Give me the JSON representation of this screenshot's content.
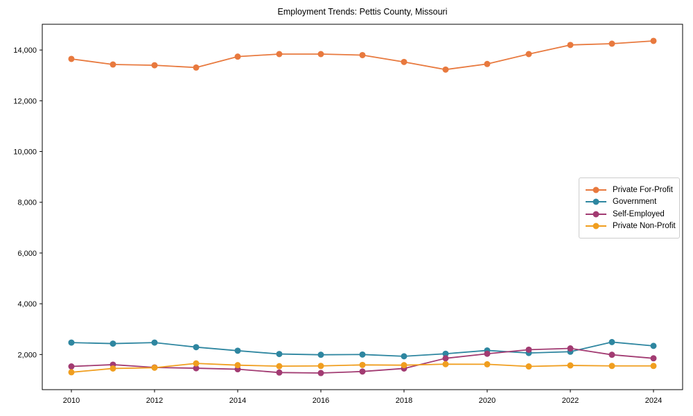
{
  "chart_data": {
    "type": "line",
    "title": "Employment Trends: Pettis County, Missouri",
    "xlabel": "",
    "ylabel": "",
    "x": [
      2010,
      2011,
      2012,
      2013,
      2014,
      2015,
      2016,
      2017,
      2018,
      2019,
      2020,
      2021,
      2022,
      2023,
      2024
    ],
    "series": [
      {
        "name": "Private For-Profit",
        "color": "#e8793e",
        "values": [
          13650,
          13430,
          13400,
          13310,
          13740,
          13840,
          13840,
          13800,
          13530,
          13230,
          13450,
          13840,
          14200,
          14250,
          14360
        ]
      },
      {
        "name": "Government",
        "color": "#2e86a0",
        "values": [
          2470,
          2430,
          2470,
          2290,
          2150,
          2020,
          1990,
          2000,
          1930,
          2030,
          2160,
          2060,
          2110,
          2490,
          2340
        ]
      },
      {
        "name": "Self-Employed",
        "color": "#a23b72",
        "values": [
          1530,
          1600,
          1490,
          1460,
          1420,
          1290,
          1270,
          1330,
          1450,
          1850,
          2030,
          2190,
          2240,
          1990,
          1850
        ]
      },
      {
        "name": "Private Non-Profit",
        "color": "#f09e1f",
        "values": [
          1300,
          1450,
          1480,
          1650,
          1580,
          1540,
          1550,
          1590,
          1580,
          1620,
          1615,
          1530,
          1570,
          1550,
          1550
        ]
      }
    ],
    "xticks": [
      2010,
      2012,
      2014,
      2016,
      2018,
      2020,
      2022,
      2024
    ],
    "xtick_labels": [
      "2010",
      "2012",
      "2014",
      "2016",
      "2018",
      "2020",
      "2022",
      "2024"
    ],
    "yticks": [
      2000,
      4000,
      6000,
      8000,
      10000,
      12000,
      14000
    ],
    "ytick_labels": [
      "2,000",
      "4,000",
      "6,000",
      "8,000",
      "10,000",
      "12,000",
      "14,000"
    ],
    "xlim": [
      2009.3,
      2024.7
    ],
    "ylim": [
      615,
      15015
    ],
    "grid": false,
    "legend_position": "center right",
    "marker": "circle"
  }
}
